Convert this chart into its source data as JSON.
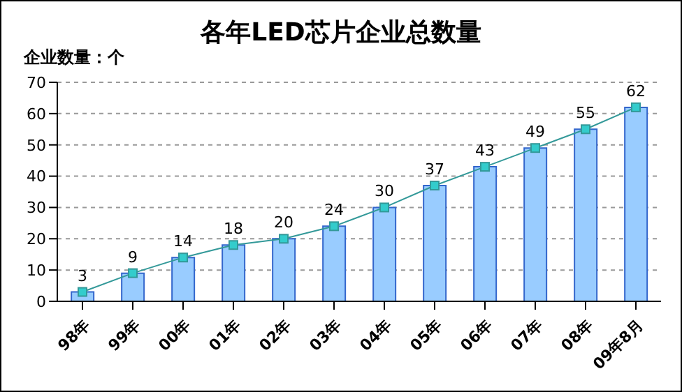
{
  "chart_data": {
    "type": "bar",
    "title": "各年LED芯片企业总数量",
    "ylabel": "企业数量：个",
    "categories": [
      "98年",
      "99年",
      "00年",
      "01年",
      "02年",
      "03年",
      "04年",
      "05年",
      "06年",
      "07年",
      "08年",
      "09年8月"
    ],
    "series": [
      {
        "color": "#99ccff",
        "values": [
          3,
          9,
          14,
          18,
          20,
          24,
          30,
          37,
          43,
          49,
          55,
          62
        ]
      },
      {
        "type": "line",
        "color": "#339999",
        "marker": "square",
        "values": [
          3,
          9,
          14,
          18,
          20,
          24,
          30,
          37,
          43,
          49,
          55,
          62
        ],
        "value_labels": [
          "3",
          "9",
          "14",
          "18",
          "20",
          "24",
          "30",
          "37",
          "43",
          "49",
          "55",
          "62"
        ]
      }
    ],
    "ylim": [
      0,
      70
    ],
    "yticks": [
      0,
      10,
      20,
      30,
      40,
      50,
      60,
      70
    ],
    "grid": "y",
    "legend": false
  }
}
